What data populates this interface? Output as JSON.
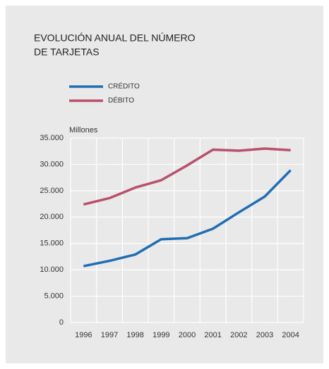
{
  "chart_data": {
    "type": "line",
    "title": [
      "EVOLUCIÓN ANUAL DEL NÚMERO",
      "DE TARJETAS"
    ],
    "y_axis_label": "Millones",
    "categories": [
      "1996",
      "1997",
      "1998",
      "1999",
      "2000",
      "2001",
      "2002",
      "2003",
      "2004"
    ],
    "series": [
      {
        "name": "CRÉDITO",
        "color": "#1f6db3",
        "values": [
          10700,
          11700,
          12900,
          15800,
          16000,
          17800,
          20900,
          23900,
          28900
        ]
      },
      {
        "name": "DÉBITO",
        "color": "#b9506c",
        "values": [
          22400,
          23600,
          25600,
          27000,
          29800,
          32800,
          32600,
          33000,
          32700
        ]
      }
    ],
    "ylim": [
      0,
      35000
    ],
    "yticks": [
      0,
      {
        "value": 5000,
        "label": "5.000"
      },
      {
        "value": 10000,
        "label": "10.000"
      },
      {
        "value": 15000,
        "label": "15.000"
      },
      {
        "value": 20000,
        "label": "20.000"
      },
      {
        "value": 25000,
        "label": "25.000"
      },
      {
        "value": 30000,
        "label": "30.000"
      },
      {
        "value": 35000,
        "label": "35.000"
      }
    ],
    "grid": true
  }
}
